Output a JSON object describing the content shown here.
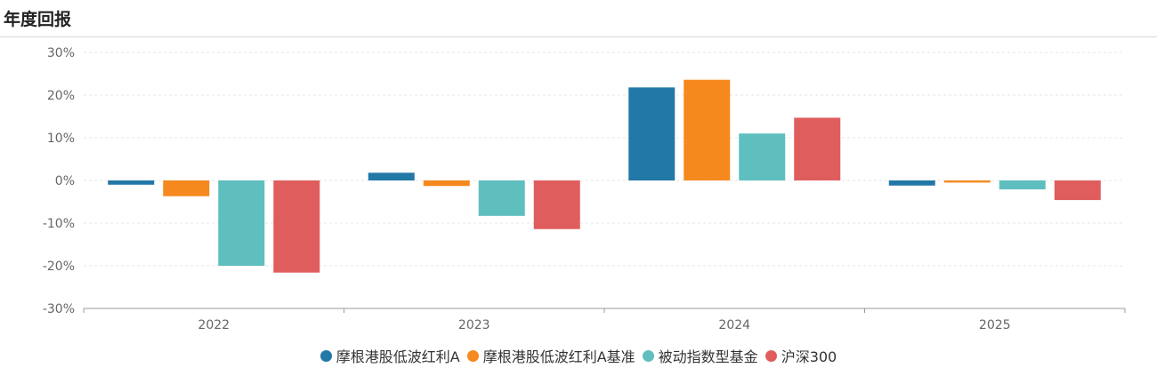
{
  "page": {
    "title": "年度回报"
  },
  "chart_data": {
    "type": "bar",
    "categories": [
      "2022",
      "2023",
      "2024",
      "2025"
    ],
    "series": [
      {
        "name": "摩根港股低波红利A",
        "color": "#2278a6",
        "values": [
          -1.0,
          1.8,
          21.8,
          -1.2
        ]
      },
      {
        "name": "摩根港股低波红利A基准",
        "color": "#f5891e",
        "values": [
          -3.7,
          -1.3,
          23.6,
          -0.5
        ]
      },
      {
        "name": "被动指数型基金",
        "color": "#5fbfbf",
        "values": [
          -20.0,
          -8.3,
          11.0,
          -2.1
        ]
      },
      {
        "name": "沪深300",
        "color": "#e05d5e",
        "values": [
          -21.6,
          -11.4,
          14.7,
          -4.6
        ]
      }
    ],
    "ylim": [
      -30,
      30
    ],
    "yticks": [
      -30,
      -20,
      -10,
      0,
      10,
      20,
      30
    ],
    "ytick_labels": [
      "-30%",
      "-20%",
      "-10%",
      "0%",
      "10%",
      "20%",
      "30%"
    ],
    "grid": true,
    "legend_position": "bottom-center"
  }
}
